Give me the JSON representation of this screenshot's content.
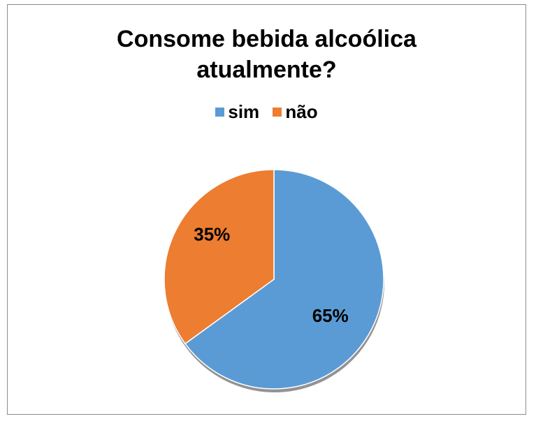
{
  "chart_data": {
    "type": "pie",
    "title_lines": [
      "Consome bebida alcoólica",
      "atualmente?"
    ],
    "categories": [
      "sim",
      "não"
    ],
    "values": [
      65,
      35
    ],
    "data_labels": [
      "65%",
      "35%"
    ],
    "colors": [
      "#5b9bd5",
      "#ed7d31"
    ],
    "legend_position": "top"
  }
}
